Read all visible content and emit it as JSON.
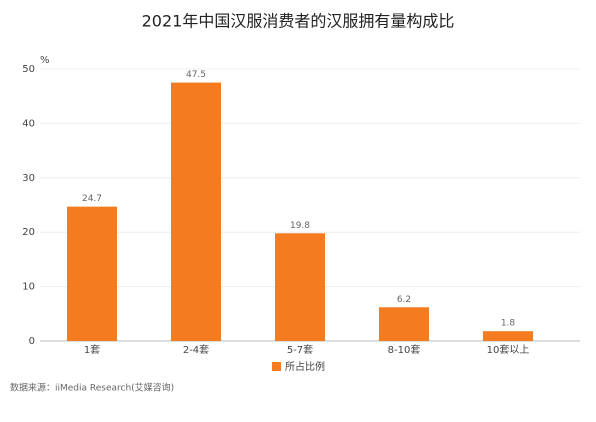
{
  "chart_data": {
    "type": "bar",
    "title": "2021年中国汉服消费者的汉服拥有量构成比",
    "y_unit": "%",
    "categories": [
      "1套",
      "2-4套",
      "5-7套",
      "8-10套",
      "10套以上"
    ],
    "series": [
      {
        "name": "所占比例",
        "color": "#f47b20",
        "values": [
          24.7,
          47.5,
          19.8,
          6.2,
          1.8
        ]
      }
    ],
    "ylim": [
      0,
      50
    ],
    "yticks": [
      0,
      10,
      20,
      30,
      40,
      50
    ],
    "grid": true,
    "legend": "bottom",
    "source": "数据来源：iiMedia Research(艾媒咨询)"
  }
}
